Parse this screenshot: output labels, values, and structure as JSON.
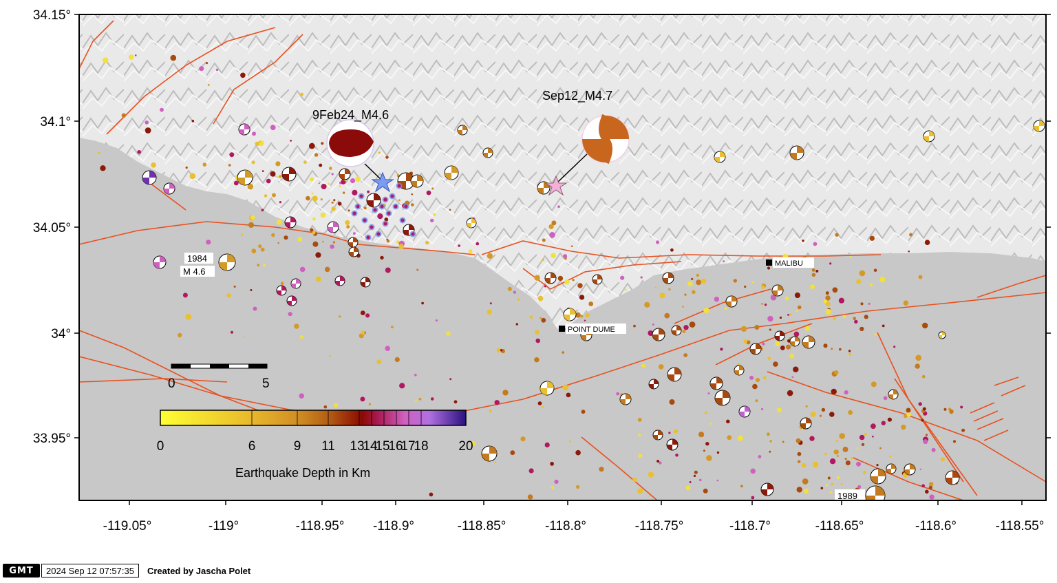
{
  "map": {
    "lat_ticks": [
      "34.15°",
      "34.1°",
      "34.05°",
      "34°",
      "33.95°"
    ],
    "lon_ticks": [
      "-119.05°",
      "-119°",
      "-118.95°",
      "-118.9°",
      "-118.85°",
      "-118.8°",
      "-118.75°",
      "-118.7°",
      "-118.65°",
      "-118.6°",
      "-118.55°"
    ],
    "places": {
      "malibu": "MALIBU",
      "point_dume": "POINT DUME"
    },
    "events": {
      "feb24": "9Feb24_M4.6",
      "sep12": "Sep12_M4.7"
    },
    "historic": {
      "e1984_year": "1984",
      "e1984_mag": "M 4.6",
      "e1989_year": "1989"
    },
    "scale_bar": {
      "start": "0",
      "end": "5"
    },
    "depth_colorbar": {
      "ticks": [
        "0",
        "6",
        "9",
        "11",
        "13",
        "14",
        "15",
        "16",
        "17",
        "18",
        "20"
      ],
      "title": "Earthquake Depth in Km",
      "colors": [
        "#ffff33",
        "#e8c030",
        "#d49a28",
        "#c47a1e",
        "#a84a10",
        "#8b0000",
        "#b01860",
        "#d060c0",
        "#c070e0",
        "#7040c0",
        "#301080"
      ]
    },
    "colors": {
      "fault": "#e8501e",
      "ocean": "#c8c8c8",
      "swarm_blue": "#6f8ee8",
      "star_blue": "#7c9cf0",
      "star_pink": "#f4b0d8"
    }
  },
  "footer": {
    "logo": "GMT",
    "timestamp": "2024 Sep 12 07:57:35",
    "credit": "Created by Jascha Polet"
  }
}
